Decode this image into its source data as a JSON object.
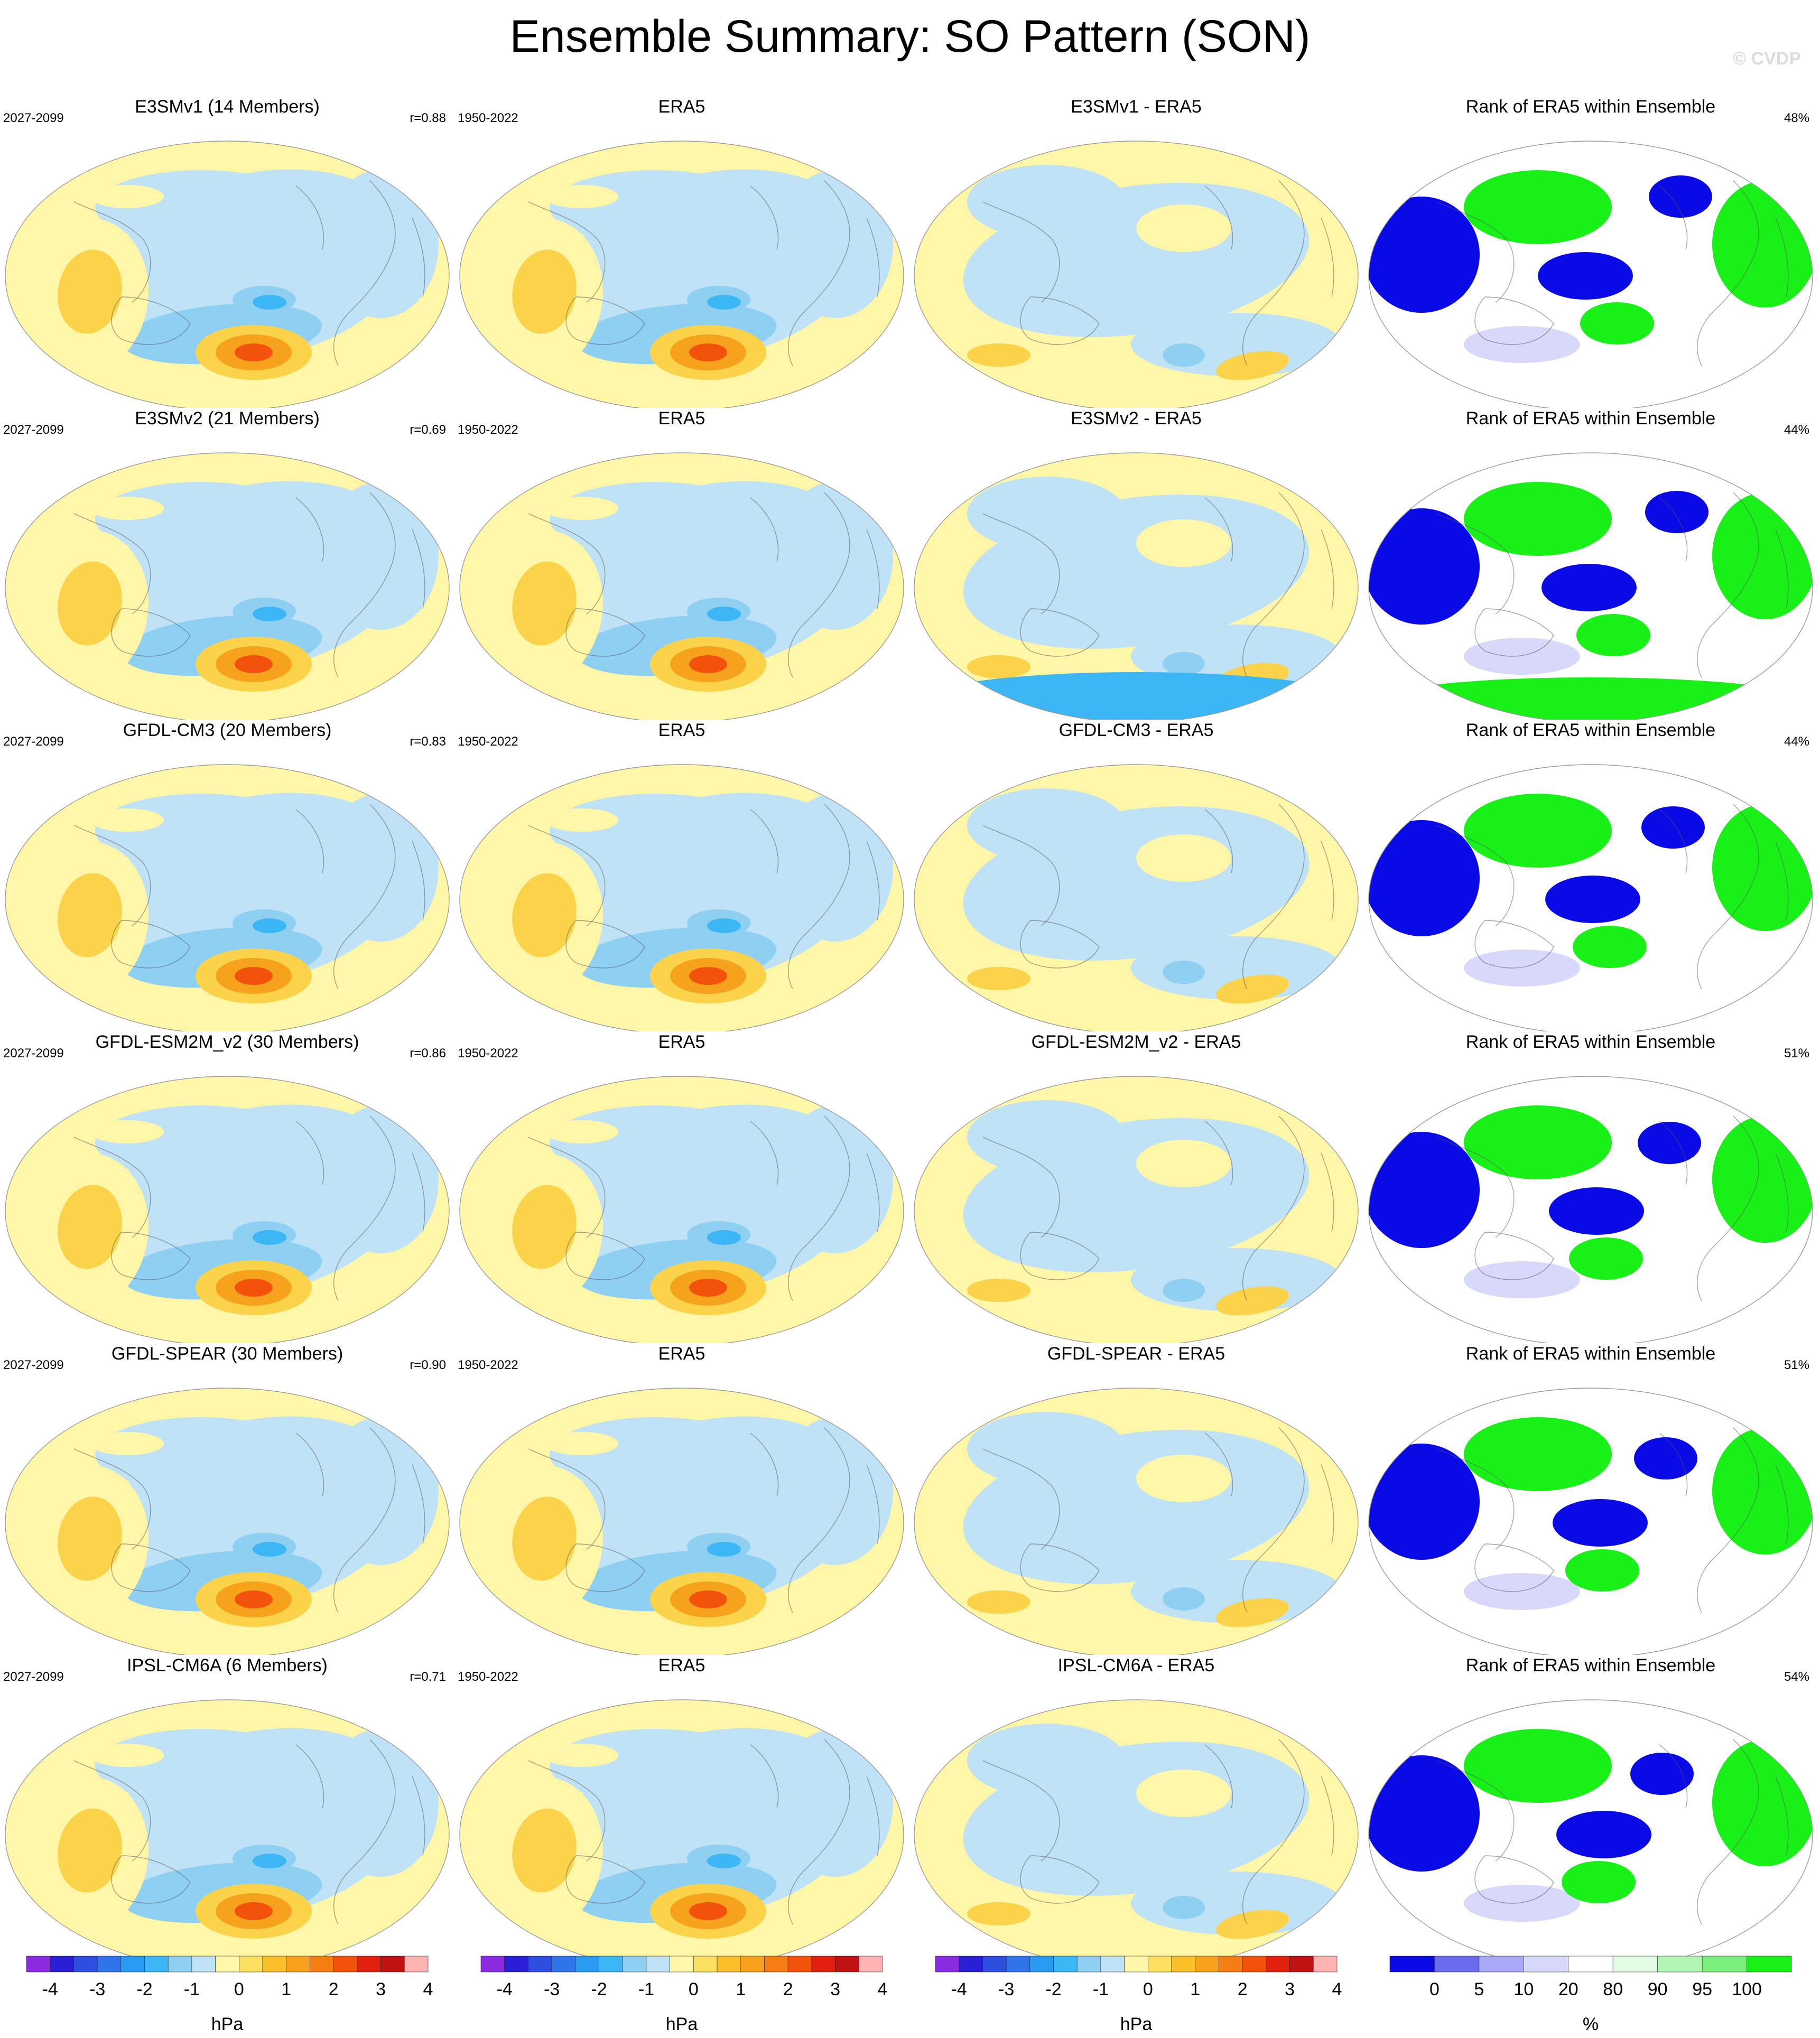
{
  "title": "Ensemble Summary: SO Pattern (SON)",
  "watermark": "© CVDP",
  "rows": [
    {
      "model": "E3SMv1 (14 Members)",
      "model_years": "2027-2099",
      "r": "r=0.88",
      "obs": "ERA5",
      "obs_years": "1950-2022",
      "diff": "E3SMv1 - ERA5",
      "rank_title": "Rank of ERA5 within Ensemble",
      "rank_pct": "48%"
    },
    {
      "model": "E3SMv2 (21 Members)",
      "model_years": "2027-2099",
      "r": "r=0.69",
      "obs": "ERA5",
      "obs_years": "1950-2022",
      "diff": "E3SMv2 - ERA5",
      "rank_title": "Rank of ERA5 within Ensemble",
      "rank_pct": "44%"
    },
    {
      "model": "GFDL-CM3 (20 Members)",
      "model_years": "2027-2099",
      "r": "r=0.83",
      "obs": "ERA5",
      "obs_years": "1950-2022",
      "diff": "GFDL-CM3 - ERA5",
      "rank_title": "Rank of ERA5 within Ensemble",
      "rank_pct": "44%"
    },
    {
      "model": "GFDL-ESM2M_v2 (30 Members)",
      "model_years": "2027-2099",
      "r": "r=0.86",
      "obs": "ERA5",
      "obs_years": "1950-2022",
      "diff": "GFDL-ESM2M_v2 - ERA5",
      "rank_title": "Rank of ERA5 within Ensemble",
      "rank_pct": "51%"
    },
    {
      "model": "GFDL-SPEAR (30 Members)",
      "model_years": "2027-2099",
      "r": "r=0.90",
      "obs": "ERA5",
      "obs_years": "1950-2022",
      "diff": "GFDL-SPEAR - ERA5",
      "rank_title": "Rank of ERA5 within Ensemble",
      "rank_pct": "51%"
    },
    {
      "model": "IPSL-CM6A (6 Members)",
      "model_years": "2027-2099",
      "r": "r=0.71",
      "obs": "ERA5",
      "obs_years": "1950-2022",
      "diff": "IPSL-CM6A - ERA5",
      "rank_title": "Rank of ERA5 within Ensemble",
      "rank_pct": "54%"
    }
  ],
  "colorbars": {
    "hpa": {
      "unit": "hPa",
      "labels": [
        "-4",
        "-3",
        "-2",
        "-1",
        "0",
        "1",
        "2",
        "3",
        "4"
      ],
      "colors": [
        "#8a2be2",
        "#2a1fd6",
        "#2f4ee0",
        "#2f74ea",
        "#2a9af2",
        "#3cb6f4",
        "#8ecff2",
        "#bfe2f6",
        "#fff6a8",
        "#fde060",
        "#fbc027",
        "#f9a01e",
        "#f67d12",
        "#f2520c",
        "#e01f0c",
        "#c01212",
        "#ffb3b3"
      ]
    },
    "rank": {
      "unit": "%",
      "labels": [
        "0",
        "5",
        "10",
        "20",
        "80",
        "90",
        "95",
        "100"
      ],
      "colors": [
        "#0a0ae6",
        "#6b6bf0",
        "#a9a9f6",
        "#d8d8fb",
        "#ffffff",
        "#e2fbe2",
        "#b3f5b3",
        "#7cf07c",
        "#18f018"
      ]
    }
  },
  "palette": {
    "pos_weak": "#fff6a8",
    "pos_mid": "#fbd34a",
    "pos_strong": "#f7a21c",
    "pos_core": "#f2520c",
    "neg_weak": "#bfe2f6",
    "neg_mid": "#8ecff2",
    "neg_strong": "#3cb6f4",
    "rank_low": "#0a0ae6",
    "rank_high": "#18f018",
    "rank_mid_low": "#d8d8fb"
  }
}
